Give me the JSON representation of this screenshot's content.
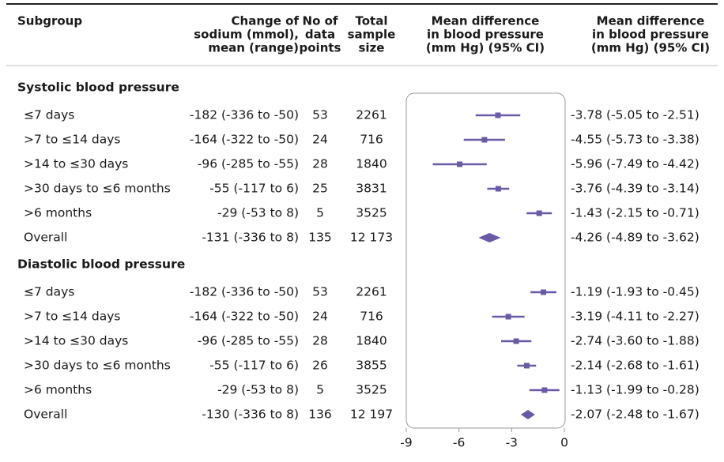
{
  "chart_data": {
    "type": "forest",
    "columns": [
      [
        "Subgroup"
      ],
      [
        "Change of",
        "sodium (mmol),",
        "mean (range)"
      ],
      [
        "No of",
        "data",
        "points"
      ],
      [
        "Total",
        "sample",
        "size"
      ],
      [
        "Mean difference",
        "in blood pressure",
        "(mm Hg) (95% CI)"
      ],
      [
        "Mean difference",
        "in blood pressure",
        "(mm Hg) (95% CI)"
      ]
    ],
    "color": "#6a5aa6",
    "xlim": [
      -9,
      0
    ],
    "xticks": [
      -9,
      -6,
      -3,
      0
    ],
    "groups": [
      {
        "name": "Systolic blood pressure",
        "rows": [
          {
            "label": "≤7 days",
            "sodium": "-182 (-336 to -50)",
            "points": 53,
            "sample": "2261",
            "mean": -3.78,
            "lower": -5.05,
            "upper": -2.51,
            "ci_label": "-3.78 (-5.05 to -2.51)"
          },
          {
            "label": ">7 to ≤14 days",
            "sodium": "-164 (-322 to -50)",
            "points": 24,
            "sample": "716",
            "mean": -4.55,
            "lower": -5.73,
            "upper": -3.38,
            "ci_label": "-4.55 (-5.73 to -3.38)"
          },
          {
            "label": ">14 to ≤30 days",
            "sodium": "-96 (-285 to -55)",
            "points": 28,
            "sample": "1840",
            "mean": -5.96,
            "lower": -7.49,
            "upper": -4.42,
            "ci_label": "-5.96 (-7.49 to -4.42)"
          },
          {
            "label": ">30 days to ≤6 months",
            "sodium": "-55 (-117 to 6)",
            "points": 25,
            "sample": "3831",
            "mean": -3.76,
            "lower": -4.39,
            "upper": -3.14,
            "ci_label": "-3.76 (-4.39 to -3.14)"
          },
          {
            "label": ">6 months",
            "sodium": "-29 (-53 to 8)",
            "points": 5,
            "sample": "3525",
            "mean": -1.43,
            "lower": -2.15,
            "upper": -0.71,
            "ci_label": "-1.43 (-2.15 to -0.71)"
          },
          {
            "label": "Overall",
            "sodium": "-131 (-336 to 8)",
            "points": 135,
            "sample": "12 173",
            "mean": -4.26,
            "lower": -4.89,
            "upper": -3.62,
            "ci_label": "-4.26 (-4.89 to -3.62)",
            "summary": true
          }
        ]
      },
      {
        "name": "Diastolic blood pressure",
        "rows": [
          {
            "label": "≤7 days",
            "sodium": "-182 (-336 to -50)",
            "points": 53,
            "sample": "2261",
            "mean": -1.19,
            "lower": -1.93,
            "upper": -0.45,
            "ci_label": "-1.19 (-1.93 to -0.45)"
          },
          {
            "label": ">7 to ≤14 days",
            "sodium": "-164 (-322 to -50)",
            "points": 24,
            "sample": "716",
            "mean": -3.19,
            "lower": -4.11,
            "upper": -2.27,
            "ci_label": "-3.19 (-4.11 to -2.27)"
          },
          {
            "label": ">14 to ≤30 days",
            "sodium": "-96 (-285 to -55)",
            "points": 28,
            "sample": "1840",
            "mean": -2.74,
            "lower": -3.6,
            "upper": -1.88,
            "ci_label": "-2.74 (-3.60 to -1.88)"
          },
          {
            "label": ">30 days to ≤6 months",
            "sodium": "-55 (-117 to 6)",
            "points": 26,
            "sample": "3855",
            "mean": -2.14,
            "lower": -2.68,
            "upper": -1.61,
            "ci_label": "-2.14 (-2.68 to -1.61)"
          },
          {
            "label": ">6 months",
            "sodium": "-29 (-53 to 8)",
            "points": 5,
            "sample": "3525",
            "mean": -1.13,
            "lower": -1.99,
            "upper": -0.28,
            "ci_label": "-1.13 (-1.99 to -0.28)"
          },
          {
            "label": "Overall",
            "sodium": "-130 (-336 to 8)",
            "points": 136,
            "sample": "12 197",
            "mean": -2.07,
            "lower": -2.48,
            "upper": -1.67,
            "ci_label": "-2.07 (-2.48 to -1.67)",
            "summary": true
          }
        ]
      }
    ]
  }
}
